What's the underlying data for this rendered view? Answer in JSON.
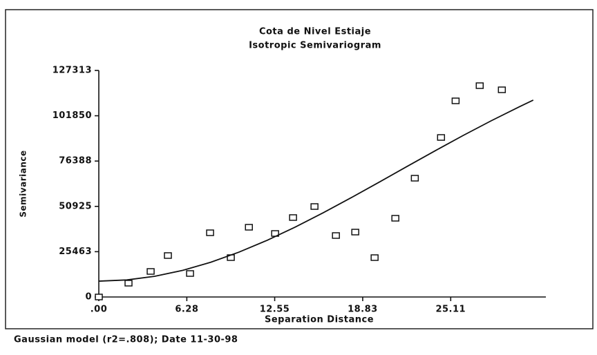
{
  "chart_data": {
    "type": "scatter",
    "title": "Cota de Nivel Estiaje",
    "subtitle": "Isotropic Semivariogram",
    "x_label": "Separation Distance",
    "y_label": "Semivariance",
    "footnote": "Gaussian model (r2=.808); Date 11-30-98",
    "xlim": [
      0,
      31.9
    ],
    "xticks": [
      {
        "value": 0,
        "label": ".00"
      },
      6.28,
      12.55,
      18.83,
      25.11
    ],
    "ylim": [
      0,
      127313
    ],
    "yticks": [
      0,
      25463,
      50925,
      76388,
      101850,
      127313
    ],
    "grid": false,
    "series": [
      {
        "mode": "markers",
        "color": "#111111",
        "x": [
          0,
          2.12,
          3.7,
          4.93,
          6.51,
          7.94,
          9.42,
          10.71,
          12.58,
          13.86,
          15.39,
          16.92,
          18.3,
          19.68,
          21.16,
          22.55,
          24.42,
          25.46,
          27.18,
          28.76
        ],
        "values": [
          0,
          7760,
          14360,
          23290,
          13200,
          36090,
          22120,
          39200,
          35700,
          44640,
          50840,
          34540,
          36480,
          22120,
          44250,
          66760,
          89650,
          110220,
          118760,
          116430
        ]
      },
      {
        "mode": "line",
        "color": "#111111",
        "x": [
          0,
          2,
          4,
          6,
          8,
          10,
          12,
          14,
          16,
          18,
          20,
          22,
          24,
          26,
          28,
          30,
          31
        ],
        "values": [
          8900,
          9590,
          11630,
          14980,
          19540,
          25200,
          31820,
          39230,
          47280,
          55760,
          64510,
          73380,
          82170,
          90770,
          99030,
          106880,
          110630
        ]
      }
    ]
  }
}
